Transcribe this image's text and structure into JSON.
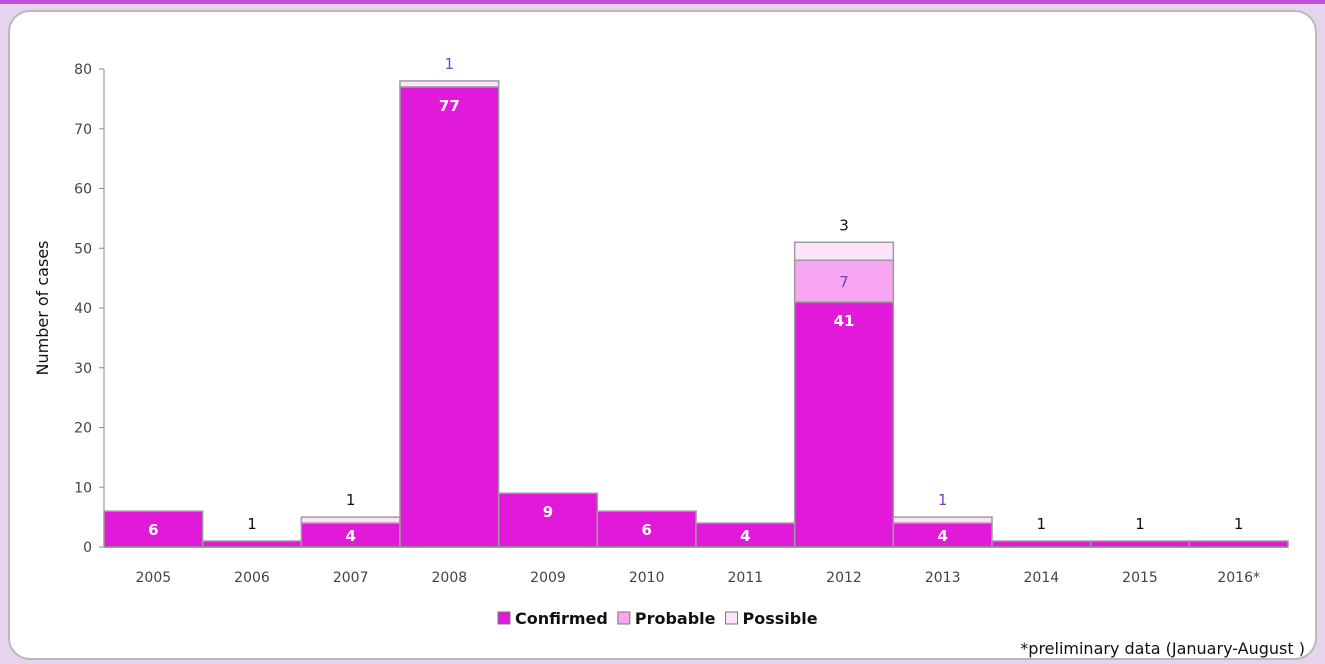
{
  "chart_data": {
    "type": "bar",
    "stacked": true,
    "categories": [
      "2005",
      "2006",
      "2007",
      "2008",
      "2009",
      "2010",
      "2011",
      "2012",
      "2013",
      "2014",
      "2015",
      "2016*"
    ],
    "series": [
      {
        "name": "Confirmed",
        "values": [
          6,
          1,
          4,
          77,
          9,
          6,
          4,
          41,
          4,
          1,
          1,
          1
        ],
        "color": "#e01ad8"
      },
      {
        "name": "Probable",
        "values": [
          0,
          0,
          0,
          0,
          0,
          0,
          0,
          7,
          0,
          0,
          0,
          0
        ],
        "color": "#f7a6f2"
      },
      {
        "name": "Possible",
        "values": [
          0,
          0,
          1,
          1,
          0,
          0,
          0,
          3,
          1,
          0,
          0,
          0
        ],
        "color": "#fde3fb"
      }
    ],
    "data_labels": [
      {
        "category": "2005",
        "text": "6",
        "style": "inside"
      },
      {
        "category": "2006",
        "text": "1",
        "style": "above"
      },
      {
        "category": "2007",
        "text": "4",
        "style": "inside"
      },
      {
        "category": "2007",
        "text": "1",
        "style": "above"
      },
      {
        "category": "2008",
        "text": "77",
        "style": "inside"
      },
      {
        "category": "2008",
        "text": "1",
        "style": "above-accent"
      },
      {
        "category": "2009",
        "text": "9",
        "style": "inside"
      },
      {
        "category": "2010",
        "text": "6",
        "style": "inside"
      },
      {
        "category": "2011",
        "text": "4",
        "style": "inside"
      },
      {
        "category": "2012",
        "text": "41",
        "style": "inside"
      },
      {
        "category": "2012",
        "text": "7",
        "style": "probable"
      },
      {
        "category": "2012",
        "text": "3",
        "style": "above"
      },
      {
        "category": "2013",
        "text": "4",
        "style": "inside"
      },
      {
        "category": "2013",
        "text": "1",
        "style": "above-accent"
      },
      {
        "category": "2014",
        "text": "1",
        "style": "above"
      },
      {
        "category": "2015",
        "text": "1",
        "style": "above"
      },
      {
        "category": "2016*",
        "text": "1",
        "style": "above"
      }
    ],
    "ylabel": "Number of cases",
    "xlabel": "",
    "ylim": [
      0,
      80
    ],
    "yticks": [
      0,
      10,
      20,
      30,
      40,
      50,
      60,
      70,
      80
    ],
    "legend_position": "bottom",
    "grid": false,
    "bar_outline_color": "#9c9c9c",
    "accent_label_color": "#7a3fc4"
  },
  "footnote": "*preliminary data (January-August )"
}
